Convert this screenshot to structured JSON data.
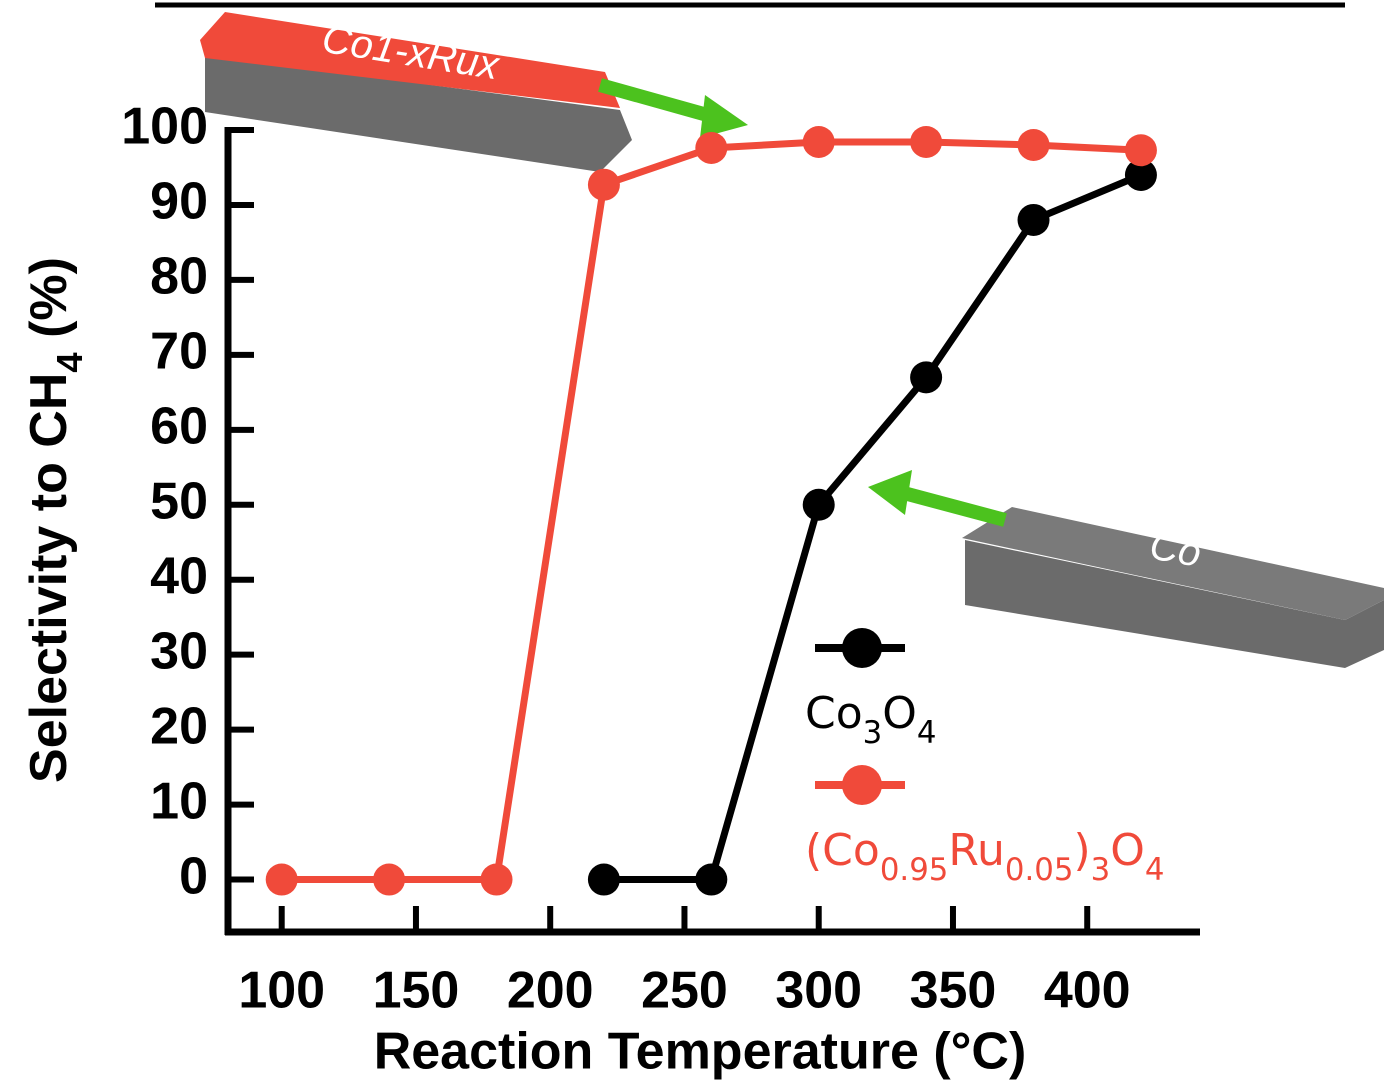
{
  "chart_data": {
    "type": "line",
    "x_label": "Reaction Temperature (°C)",
    "y_label": "Selectivity to CH4 (%)",
    "xlim": [
      80,
      442
    ],
    "xticks": [
      100,
      150,
      200,
      250,
      300,
      350,
      400
    ],
    "ylim": [
      -7,
      100
    ],
    "yticks": [
      0,
      10,
      20,
      30,
      40,
      50,
      60,
      70,
      80,
      90,
      100
    ],
    "series": [
      {
        "name": "Co3O4",
        "color": "#000000",
        "x": [
          220,
          260,
          300,
          340,
          380,
          420
        ],
        "values": [
          0,
          0,
          50,
          67,
          88,
          94
        ]
      },
      {
        "name": "(Co0.95Ru0.05)3O4",
        "color": "#f04a3a",
        "x": [
          100,
          140,
          180,
          220,
          260,
          300,
          340,
          380,
          420
        ],
        "values": [
          0,
          0,
          0,
          92.7,
          97.6,
          98.4,
          98.4,
          98,
          97.3
        ]
      }
    ],
    "annotations": [
      "Co1-xRux",
      "Co"
    ]
  }
}
